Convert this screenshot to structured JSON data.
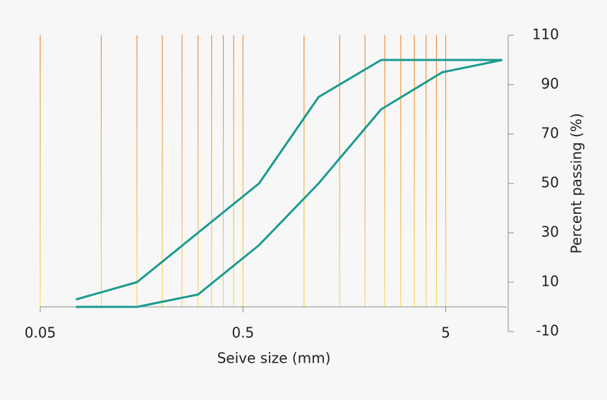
{
  "chart_data": {
    "type": "line",
    "x_label": "Seive size (mm)",
    "y_label": "Percent passing (%)",
    "x_log": true,
    "xlim": [
      0.05,
      10
    ],
    "xticks": [
      0.05,
      0.5,
      5
    ],
    "ylim": [
      -10,
      110
    ],
    "yticks": [
      -10,
      10,
      30,
      50,
      70,
      90,
      110
    ],
    "y_axis_side": "right",
    "sieve_sizes": [
      0.05,
      0.1,
      0.15,
      0.2,
      0.25,
      0.3,
      0.35,
      0.4,
      0.45,
      0.5,
      1,
      1.5,
      2,
      2.5,
      3,
      3.5,
      4,
      4.5,
      5
    ],
    "series": [
      {
        "color": "#1a9b90",
        "x": [
          0.075,
          0.15,
          0.6,
          1.18,
          2.4,
          9.5
        ],
        "values": [
          3,
          10,
          50,
          85,
          100,
          100
        ]
      },
      {
        "color": "#1a9b90",
        "x": [
          0.075,
          0.15,
          0.3,
          0.6,
          1.18,
          2.4,
          4.8,
          9.5
        ],
        "values": [
          0,
          0,
          5,
          25,
          50,
          80,
          95,
          100
        ]
      }
    ]
  }
}
